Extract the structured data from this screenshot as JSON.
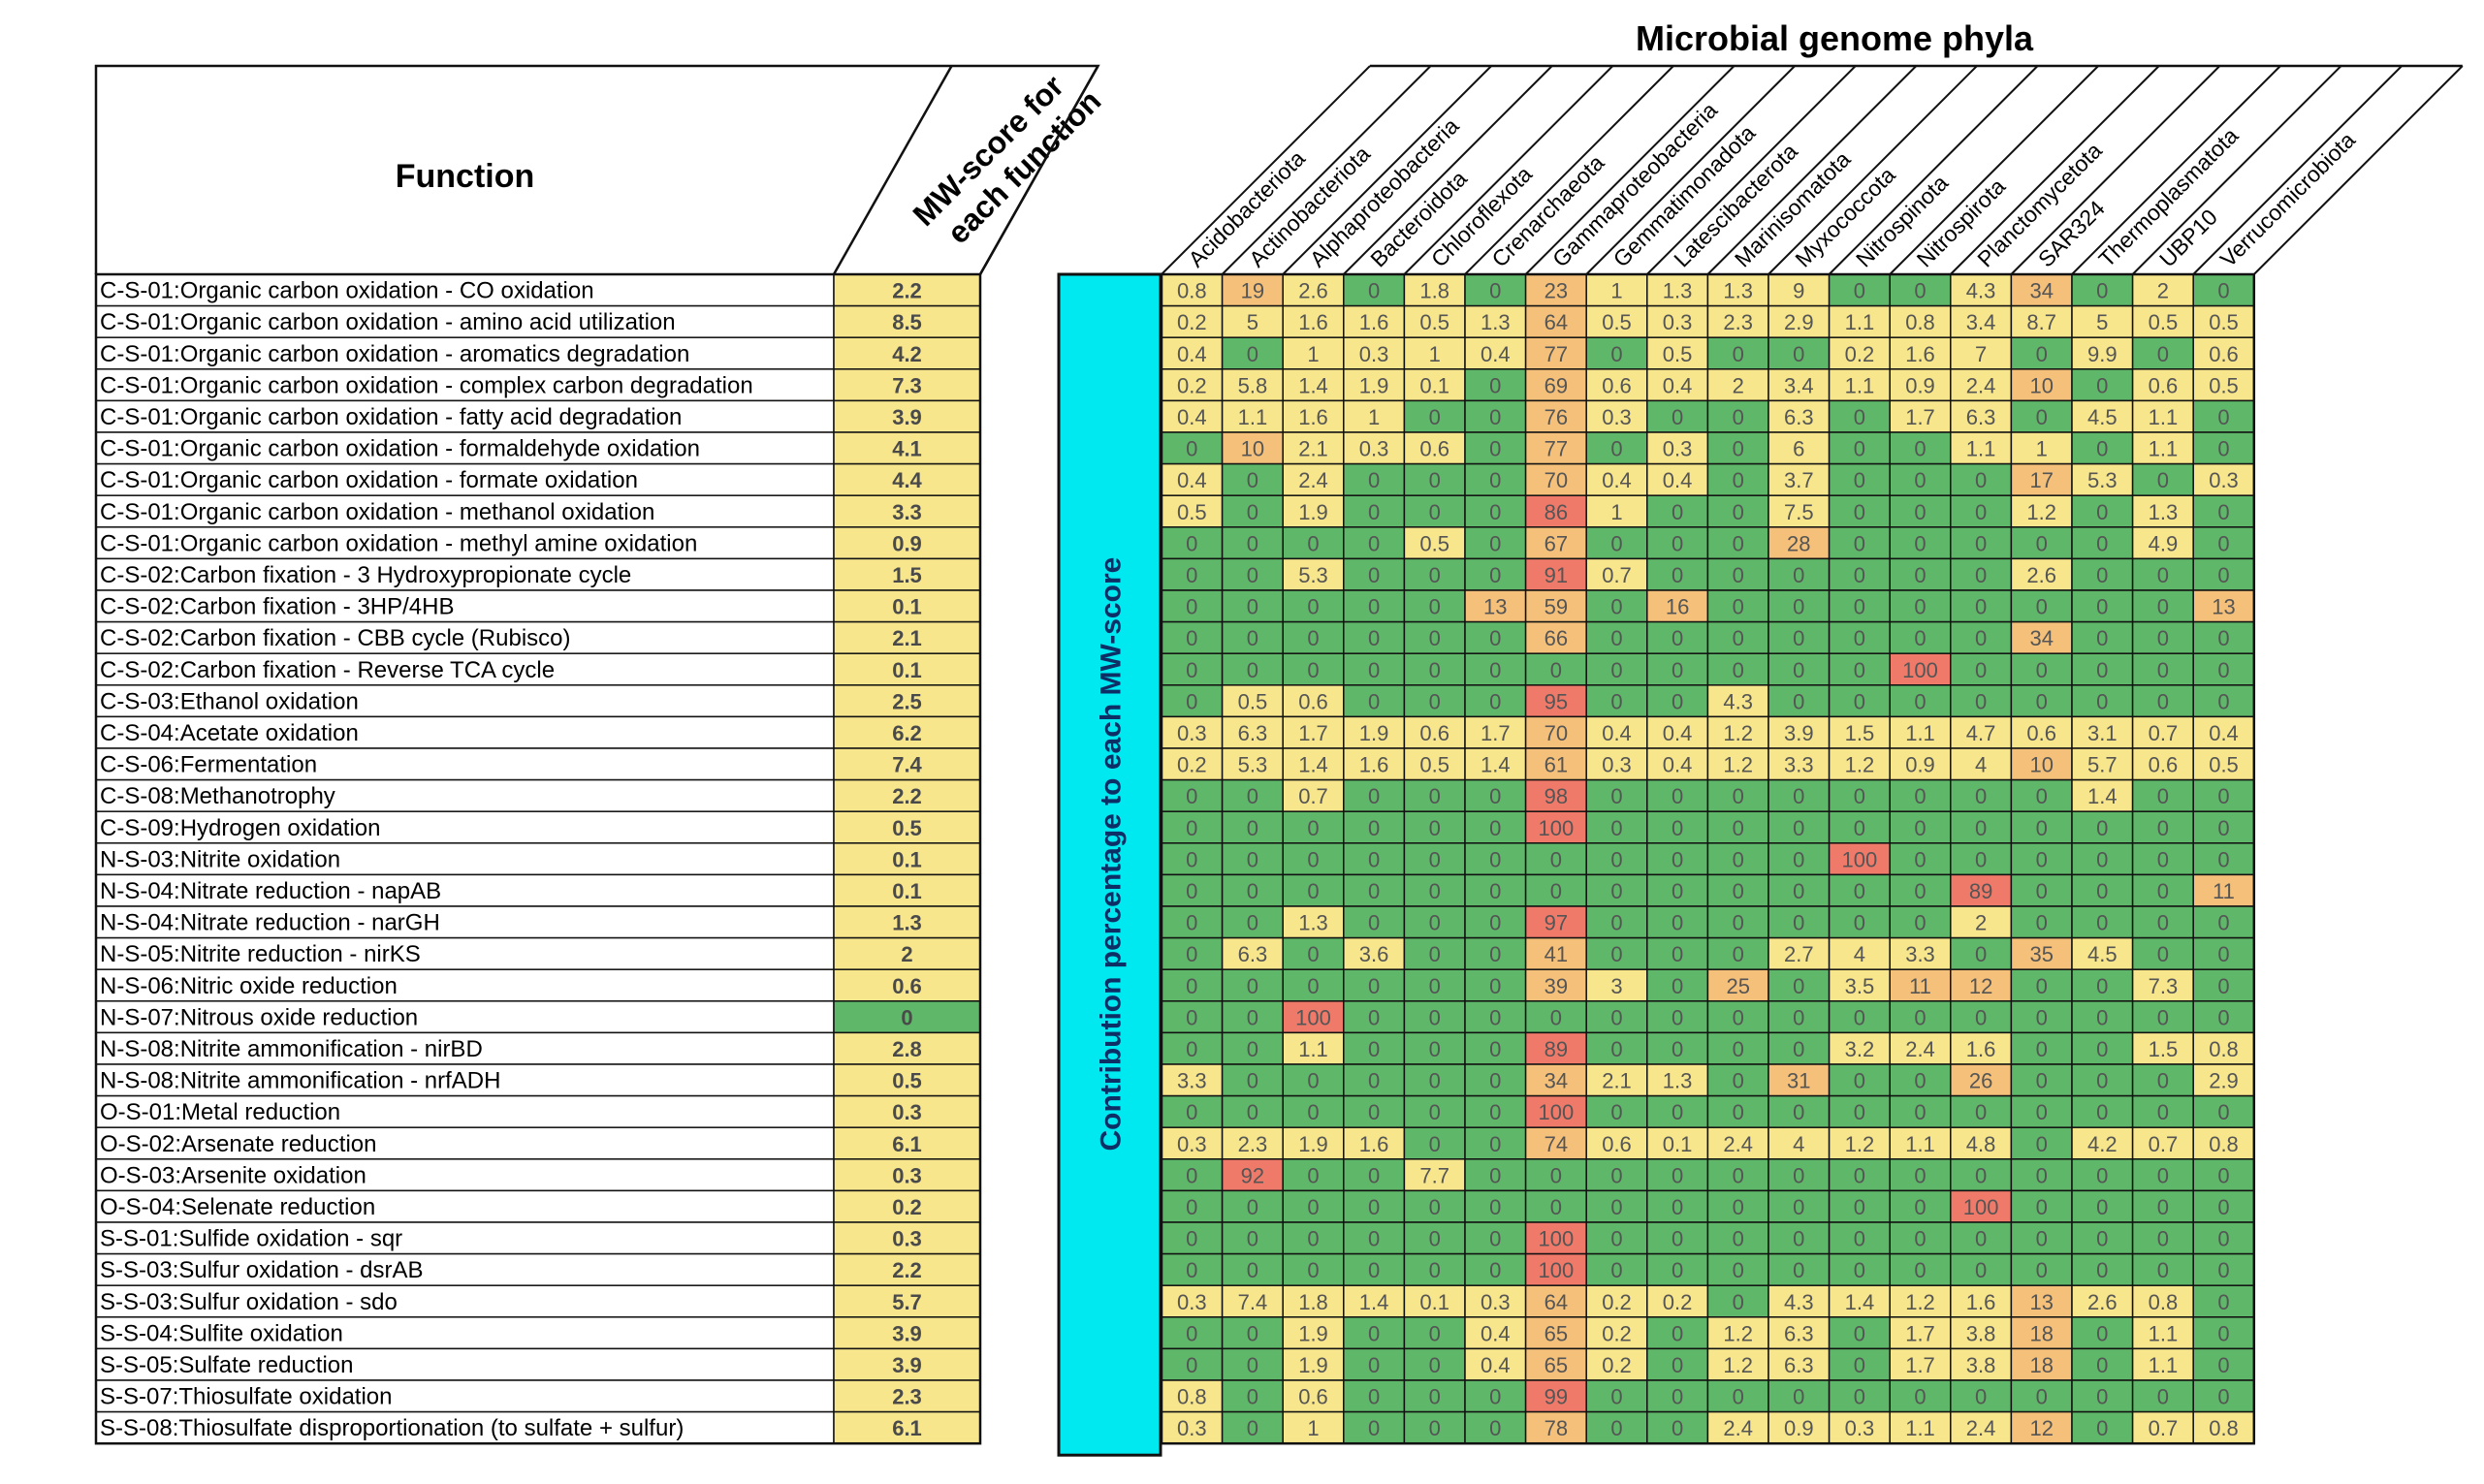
{
  "chart_data": {
    "type": "heatmap",
    "title": "Microbial genome phyla",
    "row_header": "Function",
    "score_header_lines": [
      "MW-score for",
      "each function"
    ],
    "side_label": "Contribution percentage to each MW-score",
    "columns": [
      "Acidobacteriota",
      "Actinobacteriota",
      "Alphaproteobacteria",
      "Bacteroidota",
      "Chloroflexota",
      "Crenarchaeota",
      "Gammaproteobacteria",
      "Gemmatimonadota",
      "Latescibacterota",
      "Marinisomatota",
      "Myxococcota",
      "Nitrospinota",
      "Nitrospirota",
      "Planctomycetota",
      "SAR324",
      "Thermoplasmatota",
      "UBP10",
      "Verrucomicrobiota"
    ],
    "rows": [
      {
        "function": "C-S-01:Organic carbon oxidation - CO oxidation",
        "score": "2.2",
        "values": [
          "0.8",
          "19",
          "2.6",
          "0",
          "1.8",
          "0",
          "23",
          "1",
          "1.3",
          "1.3",
          "9",
          "0",
          "0",
          "4.3",
          "34",
          "0",
          "2",
          "0"
        ]
      },
      {
        "function": "C-S-01:Organic carbon oxidation - amino acid utilization",
        "score": "8.5",
        "values": [
          "0.2",
          "5",
          "1.6",
          "1.6",
          "0.5",
          "1.3",
          "64",
          "0.5",
          "0.3",
          "2.3",
          "2.9",
          "1.1",
          "0.8",
          "3.4",
          "8.7",
          "5",
          "0.5",
          "0.5"
        ]
      },
      {
        "function": "C-S-01:Organic carbon oxidation - aromatics degradation",
        "score": "4.2",
        "values": [
          "0.4",
          "0",
          "1",
          "0.3",
          "1",
          "0.4",
          "77",
          "0",
          "0.5",
          "0",
          "0",
          "0.2",
          "1.6",
          "7",
          "0",
          "9.9",
          "0",
          "0.6"
        ]
      },
      {
        "function": "C-S-01:Organic carbon oxidation - complex carbon degradation",
        "score": "7.3",
        "values": [
          "0.2",
          "5.8",
          "1.4",
          "1.9",
          "0.1",
          "0",
          "69",
          "0.6",
          "0.4",
          "2",
          "3.4",
          "1.1",
          "0.9",
          "2.4",
          "10",
          "0",
          "0.6",
          "0.5"
        ]
      },
      {
        "function": "C-S-01:Organic carbon oxidation - fatty acid degradation",
        "score": "3.9",
        "values": [
          "0.4",
          "1.1",
          "1.6",
          "1",
          "0",
          "0",
          "76",
          "0.3",
          "0",
          "0",
          "6.3",
          "0",
          "1.7",
          "6.3",
          "0",
          "4.5",
          "1.1",
          "0"
        ]
      },
      {
        "function": "C-S-01:Organic carbon oxidation - formaldehyde oxidation",
        "score": "4.1",
        "values": [
          "0",
          "10",
          "2.1",
          "0.3",
          "0.6",
          "0",
          "77",
          "0",
          "0.3",
          "0",
          "6",
          "0",
          "0",
          "1.1",
          "1",
          "0",
          "1.1",
          "0"
        ]
      },
      {
        "function": "C-S-01:Organic carbon oxidation - formate oxidation",
        "score": "4.4",
        "values": [
          "0.4",
          "0",
          "2.4",
          "0",
          "0",
          "0",
          "70",
          "0.4",
          "0.4",
          "0",
          "3.7",
          "0",
          "0",
          "0",
          "17",
          "5.3",
          "0",
          "0.3"
        ]
      },
      {
        "function": "C-S-01:Organic carbon oxidation - methanol oxidation",
        "score": "3.3",
        "values": [
          "0.5",
          "0",
          "1.9",
          "0",
          "0",
          "0",
          "86",
          "1",
          "0",
          "0",
          "7.5",
          "0",
          "0",
          "0",
          "1.2",
          "0",
          "1.3",
          "0"
        ]
      },
      {
        "function": "C-S-01:Organic carbon oxidation - methyl amine oxidation",
        "score": "0.9",
        "values": [
          "0",
          "0",
          "0",
          "0",
          "0.5",
          "0",
          "67",
          "0",
          "0",
          "0",
          "28",
          "0",
          "0",
          "0",
          "0",
          "0",
          "4.9",
          "0"
        ]
      },
      {
        "function": "C-S-02:Carbon fixation - 3 Hydroxypropionate cycle",
        "score": "1.5",
        "values": [
          "0",
          "0",
          "5.3",
          "0",
          "0",
          "0",
          "91",
          "0.7",
          "0",
          "0",
          "0",
          "0",
          "0",
          "0",
          "2.6",
          "0",
          "0",
          "0"
        ]
      },
      {
        "function": "C-S-02:Carbon fixation - 3HP/4HB",
        "score": "0.1",
        "values": [
          "0",
          "0",
          "0",
          "0",
          "0",
          "13",
          "59",
          "0",
          "16",
          "0",
          "0",
          "0",
          "0",
          "0",
          "0",
          "0",
          "0",
          "13"
        ]
      },
      {
        "function": "C-S-02:Carbon fixation - CBB cycle (Rubisco)",
        "score": "2.1",
        "values": [
          "0",
          "0",
          "0",
          "0",
          "0",
          "0",
          "66",
          "0",
          "0",
          "0",
          "0",
          "0",
          "0",
          "0",
          "34",
          "0",
          "0",
          "0"
        ]
      },
      {
        "function": "C-S-02:Carbon fixation - Reverse TCA cycle",
        "score": "0.1",
        "values": [
          "0",
          "0",
          "0",
          "0",
          "0",
          "0",
          "0",
          "0",
          "0",
          "0",
          "0",
          "0",
          "100",
          "0",
          "0",
          "0",
          "0",
          "0"
        ]
      },
      {
        "function": "C-S-03:Ethanol oxidation",
        "score": "2.5",
        "values": [
          "0",
          "0.5",
          "0.6",
          "0",
          "0",
          "0",
          "95",
          "0",
          "0",
          "4.3",
          "0",
          "0",
          "0",
          "0",
          "0",
          "0",
          "0",
          "0"
        ]
      },
      {
        "function": "C-S-04:Acetate oxidation",
        "score": "6.2",
        "values": [
          "0.3",
          "6.3",
          "1.7",
          "1.9",
          "0.6",
          "1.7",
          "70",
          "0.4",
          "0.4",
          "1.2",
          "3.9",
          "1.5",
          "1.1",
          "4.7",
          "0.6",
          "3.1",
          "0.7",
          "0.4"
        ]
      },
      {
        "function": "C-S-06:Fermentation",
        "score": "7.4",
        "values": [
          "0.2",
          "5.3",
          "1.4",
          "1.6",
          "0.5",
          "1.4",
          "61",
          "0.3",
          "0.4",
          "1.2",
          "3.3",
          "1.2",
          "0.9",
          "4",
          "10",
          "5.7",
          "0.6",
          "0.5"
        ]
      },
      {
        "function": "C-S-08:Methanotrophy",
        "score": "2.2",
        "values": [
          "0",
          "0",
          "0.7",
          "0",
          "0",
          "0",
          "98",
          "0",
          "0",
          "0",
          "0",
          "0",
          "0",
          "0",
          "0",
          "1.4",
          "0",
          "0"
        ]
      },
      {
        "function": "C-S-09:Hydrogen oxidation",
        "score": "0.5",
        "values": [
          "0",
          "0",
          "0",
          "0",
          "0",
          "0",
          "100",
          "0",
          "0",
          "0",
          "0",
          "0",
          "0",
          "0",
          "0",
          "0",
          "0",
          "0"
        ]
      },
      {
        "function": "N-S-03:Nitrite oxidation",
        "score": "0.1",
        "values": [
          "0",
          "0",
          "0",
          "0",
          "0",
          "0",
          "0",
          "0",
          "0",
          "0",
          "0",
          "100",
          "0",
          "0",
          "0",
          "0",
          "0",
          "0"
        ]
      },
      {
        "function": "N-S-04:Nitrate reduction - napAB",
        "score": "0.1",
        "values": [
          "0",
          "0",
          "0",
          "0",
          "0",
          "0",
          "0",
          "0",
          "0",
          "0",
          "0",
          "0",
          "0",
          "89",
          "0",
          "0",
          "0",
          "11"
        ]
      },
      {
        "function": "N-S-04:Nitrate reduction - narGH",
        "score": "1.3",
        "values": [
          "0",
          "0",
          "1.3",
          "0",
          "0",
          "0",
          "97",
          "0",
          "0",
          "0",
          "0",
          "0",
          "0",
          "2",
          "0",
          "0",
          "0",
          "0"
        ]
      },
      {
        "function": "N-S-05:Nitrite reduction - nirKS",
        "score": "2",
        "values": [
          "0",
          "6.3",
          "0",
          "3.6",
          "0",
          "0",
          "41",
          "0",
          "0",
          "0",
          "2.7",
          "4",
          "3.3",
          "0",
          "35",
          "4.5",
          "0",
          "0"
        ]
      },
      {
        "function": "N-S-06:Nitric oxide reduction",
        "score": "0.6",
        "values": [
          "0",
          "0",
          "0",
          "0",
          "0",
          "0",
          "39",
          "3",
          "0",
          "25",
          "0",
          "3.5",
          "11",
          "12",
          "0",
          "0",
          "7.3",
          "0"
        ]
      },
      {
        "function": "N-S-07:Nitrous oxide reduction",
        "score": "0",
        "values": [
          "0",
          "0",
          "100",
          "0",
          "0",
          "0",
          "0",
          "0",
          "0",
          "0",
          "0",
          "0",
          "0",
          "0",
          "0",
          "0",
          "0",
          "0"
        ]
      },
      {
        "function": "N-S-08:Nitrite ammonification - nirBD",
        "score": "2.8",
        "values": [
          "0",
          "0",
          "1.1",
          "0",
          "0",
          "0",
          "89",
          "0",
          "0",
          "0",
          "0",
          "3.2",
          "2.4",
          "1.6",
          "0",
          "0",
          "1.5",
          "0.8"
        ]
      },
      {
        "function": "N-S-08:Nitrite ammonification - nrfADH",
        "score": "0.5",
        "values": [
          "3.3",
          "0",
          "0",
          "0",
          "0",
          "0",
          "34",
          "2.1",
          "1.3",
          "0",
          "31",
          "0",
          "0",
          "26",
          "0",
          "0",
          "0",
          "2.9"
        ]
      },
      {
        "function": "O-S-01:Metal reduction",
        "score": "0.3",
        "values": [
          "0",
          "0",
          "0",
          "0",
          "0",
          "0",
          "100",
          "0",
          "0",
          "0",
          "0",
          "0",
          "0",
          "0",
          "0",
          "0",
          "0",
          "0"
        ]
      },
      {
        "function": "O-S-02:Arsenate reduction",
        "score": "6.1",
        "values": [
          "0.3",
          "2.3",
          "1.9",
          "1.6",
          "0",
          "0",
          "74",
          "0.6",
          "0.1",
          "2.4",
          "4",
          "1.2",
          "1.1",
          "4.8",
          "0",
          "4.2",
          "0.7",
          "0.8"
        ]
      },
      {
        "function": "O-S-03:Arsenite oxidation",
        "score": "0.3",
        "values": [
          "0",
          "92",
          "0",
          "0",
          "7.7",
          "0",
          "0",
          "0",
          "0",
          "0",
          "0",
          "0",
          "0",
          "0",
          "0",
          "0",
          "0",
          "0"
        ]
      },
      {
        "function": "O-S-04:Selenate reduction",
        "score": "0.2",
        "values": [
          "0",
          "0",
          "0",
          "0",
          "0",
          "0",
          "0",
          "0",
          "0",
          "0",
          "0",
          "0",
          "0",
          "100",
          "0",
          "0",
          "0",
          "0"
        ]
      },
      {
        "function": "S-S-01:Sulfide oxidation - sqr",
        "score": "0.3",
        "values": [
          "0",
          "0",
          "0",
          "0",
          "0",
          "0",
          "100",
          "0",
          "0",
          "0",
          "0",
          "0",
          "0",
          "0",
          "0",
          "0",
          "0",
          "0"
        ]
      },
      {
        "function": "S-S-03:Sulfur oxidation - dsrAB",
        "score": "2.2",
        "values": [
          "0",
          "0",
          "0",
          "0",
          "0",
          "0",
          "100",
          "0",
          "0",
          "0",
          "0",
          "0",
          "0",
          "0",
          "0",
          "0",
          "0",
          "0"
        ]
      },
      {
        "function": "S-S-03:Sulfur oxidation - sdo",
        "score": "5.7",
        "values": [
          "0.3",
          "7.4",
          "1.8",
          "1.4",
          "0.1",
          "0.3",
          "64",
          "0.2",
          "0.2",
          "0",
          "4.3",
          "1.4",
          "1.2",
          "1.6",
          "13",
          "2.6",
          "0.8",
          "0"
        ]
      },
      {
        "function": "S-S-04:Sulfite oxidation",
        "score": "3.9",
        "values": [
          "0",
          "0",
          "1.9",
          "0",
          "0",
          "0.4",
          "65",
          "0.2",
          "0",
          "1.2",
          "6.3",
          "0",
          "1.7",
          "3.8",
          "18",
          "0",
          "1.1",
          "0"
        ]
      },
      {
        "function": "S-S-05:Sulfate reduction",
        "score": "3.9",
        "values": [
          "0",
          "0",
          "1.9",
          "0",
          "0",
          "0.4",
          "65",
          "0.2",
          "0",
          "1.2",
          "6.3",
          "0",
          "1.7",
          "3.8",
          "18",
          "0",
          "1.1",
          "0"
        ]
      },
      {
        "function": "S-S-07:Thiosulfate oxidation",
        "score": "2.3",
        "values": [
          "0.8",
          "0",
          "0.6",
          "0",
          "0",
          "0",
          "99",
          "0",
          "0",
          "0",
          "0",
          "0",
          "0",
          "0",
          "0",
          "0",
          "0",
          "0"
        ]
      },
      {
        "function": "S-S-08:Thiosulfate disproportionation (to sulfate + sulfur)",
        "score": "6.1",
        "values": [
          "0.3",
          "0",
          "1",
          "0",
          "0",
          "0",
          "78",
          "0",
          "0",
          "2.4",
          "0.9",
          "0.3",
          "1.1",
          "2.4",
          "12",
          "0",
          "0.7",
          "0.8"
        ]
      }
    ],
    "colors": {
      "zero": "#5fb86a",
      "low": "#f7e68c",
      "mid": "#f5c17a",
      "high": "#f07a6a",
      "score_bg": "#f7e68c",
      "score_zero_bg": "#5fb86a",
      "side_bar": "#00e8f0",
      "grid": "#111111"
    }
  }
}
